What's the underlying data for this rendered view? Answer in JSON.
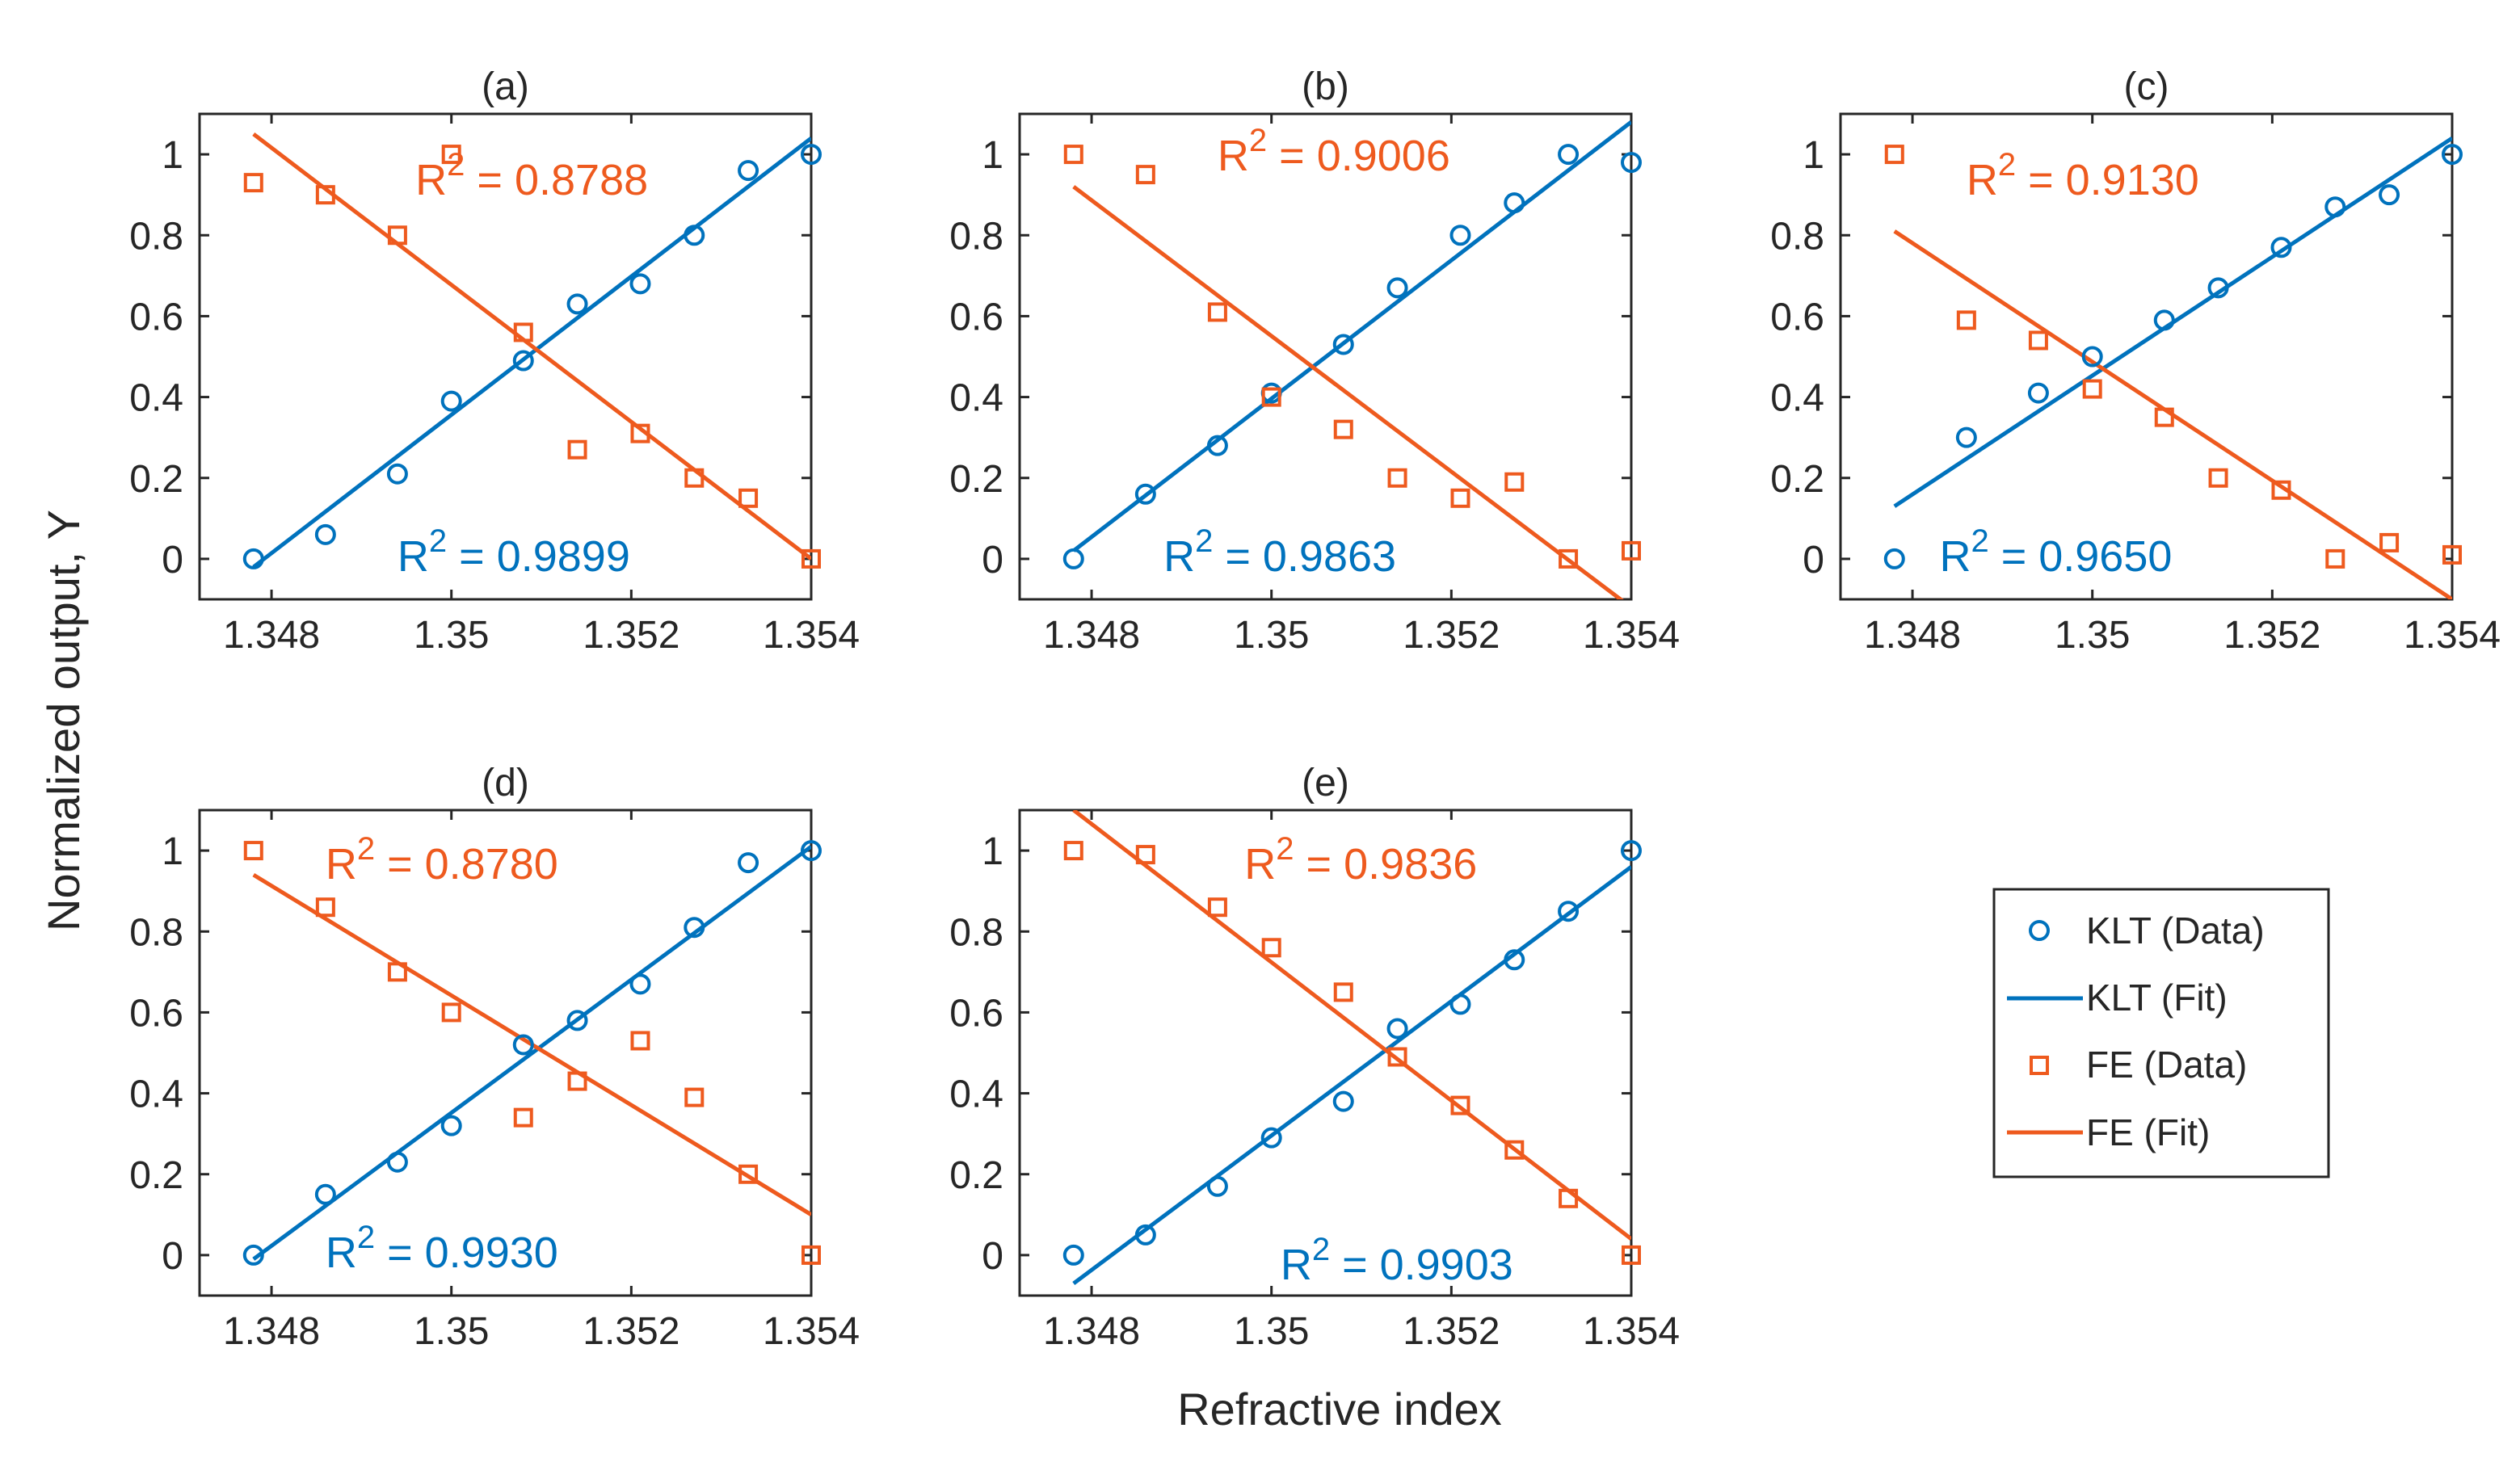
{
  "figure": {
    "ylabel": "Normalized output, Y",
    "xlabel": "Refractive index"
  },
  "colors": {
    "klt": "#0072BD",
    "fe": "#EE5A1E",
    "axis": "#262626",
    "background": "#ffffff"
  },
  "legend": {
    "items": [
      {
        "label": "KLT (Data)",
        "series": "klt",
        "kind": "marker-circle"
      },
      {
        "label": "KLT (Fit)",
        "series": "klt",
        "kind": "line"
      },
      {
        "label": "FE (Data)",
        "series": "fe",
        "kind": "marker-square"
      },
      {
        "label": "FE (Fit)",
        "series": "fe",
        "kind": "line"
      }
    ]
  },
  "axis_shared": {
    "xlim": [
      1.3472,
      1.354
    ],
    "ylim": [
      -0.1,
      1.1
    ],
    "xticks": [
      1.348,
      1.35,
      1.352,
      1.354
    ],
    "xtick_labels": [
      "1.348",
      "1.35",
      "1.352",
      "1.354"
    ],
    "yticks": [
      0,
      0.2,
      0.4,
      0.6,
      0.8,
      1
    ],
    "ytick_labels": [
      "0",
      "0.2",
      "0.4",
      "0.6",
      "0.8",
      "1"
    ]
  },
  "chart_data": [
    {
      "type": "scatter",
      "title": "(a)",
      "x": [
        1.3478,
        1.3486,
        1.3494,
        1.35,
        1.3508,
        1.3514,
        1.3521,
        1.3527,
        1.3533,
        1.354
      ],
      "series": [
        {
          "name": "KLT (Data)",
          "key": "klt",
          "values": [
            0.0,
            0.06,
            0.21,
            0.39,
            0.49,
            0.63,
            0.68,
            0.8,
            0.96,
            1.0
          ]
        },
        {
          "name": "FE (Data)",
          "key": "fe",
          "values": [
            0.93,
            0.9,
            0.8,
            1.0,
            0.56,
            0.27,
            0.31,
            0.2,
            0.15,
            0.0
          ]
        }
      ],
      "fits": [
        {
          "name": "KLT (Fit)",
          "key": "klt",
          "x": [
            1.3478,
            1.354
          ],
          "y": [
            -0.02,
            1.04
          ]
        },
        {
          "name": "FE (Fit)",
          "key": "fe",
          "x": [
            1.3478,
            1.354
          ],
          "y": [
            1.05,
            0.0
          ]
        }
      ],
      "annotations": [
        {
          "key": "fe",
          "prefix": "R",
          "sup": "2",
          "text": " = 0.8788",
          "x": 1.3496,
          "y": 0.9
        },
        {
          "key": "klt",
          "prefix": "R",
          "sup": "2",
          "text": " = 0.9899",
          "x": 1.3494,
          "y": -0.03
        }
      ]
    },
    {
      "type": "scatter",
      "title": "(b)",
      "x": [
        1.3478,
        1.3486,
        1.3494,
        1.35,
        1.3508,
        1.3514,
        1.3521,
        1.3527,
        1.3533,
        1.354
      ],
      "series": [
        {
          "name": "KLT (Data)",
          "key": "klt",
          "values": [
            0.0,
            0.16,
            0.28,
            0.41,
            0.53,
            0.67,
            0.8,
            0.88,
            1.0,
            0.98
          ]
        },
        {
          "name": "FE (Data)",
          "key": "fe",
          "values": [
            1.0,
            0.95,
            0.61,
            0.4,
            0.32,
            0.2,
            0.15,
            0.19,
            0.0,
            0.02
          ]
        }
      ],
      "fits": [
        {
          "name": "KLT (Fit)",
          "key": "klt",
          "x": [
            1.3478,
            1.354
          ],
          "y": [
            0.02,
            1.08
          ]
        },
        {
          "name": "FE (Fit)",
          "key": "fe",
          "x": [
            1.3478,
            1.354
          ],
          "y": [
            0.92,
            -0.12
          ]
        }
      ],
      "annotations": [
        {
          "key": "fe",
          "prefix": "R",
          "sup": "2",
          "text": " = 0.9006",
          "x": 1.3494,
          "y": 0.96
        },
        {
          "key": "klt",
          "prefix": "R",
          "sup": "2",
          "text": " = 0.9863",
          "x": 1.3488,
          "y": -0.03
        }
      ]
    },
    {
      "type": "scatter",
      "title": "(c)",
      "x": [
        1.3478,
        1.3486,
        1.3494,
        1.35,
        1.3508,
        1.3514,
        1.3521,
        1.3527,
        1.3533,
        1.354
      ],
      "series": [
        {
          "name": "KLT (Data)",
          "key": "klt",
          "values": [
            0.0,
            0.3,
            0.41,
            0.5,
            0.59,
            0.67,
            0.77,
            0.87,
            0.9,
            1.0
          ]
        },
        {
          "name": "FE (Data)",
          "key": "fe",
          "values": [
            1.0,
            0.59,
            0.54,
            0.42,
            0.35,
            0.2,
            0.17,
            0.0,
            0.04,
            0.01
          ]
        }
      ],
      "fits": [
        {
          "name": "KLT (Fit)",
          "key": "klt",
          "x": [
            1.3478,
            1.354
          ],
          "y": [
            0.13,
            1.04
          ]
        },
        {
          "name": "FE (Fit)",
          "key": "fe",
          "x": [
            1.3478,
            1.354
          ],
          "y": [
            0.81,
            -0.1
          ]
        }
      ],
      "annotations": [
        {
          "key": "fe",
          "prefix": "R",
          "sup": "2",
          "text": " = 0.9130",
          "x": 1.3486,
          "y": 0.9
        },
        {
          "key": "klt",
          "prefix": "R",
          "sup": "2",
          "text": " = 0.9650",
          "x": 1.3483,
          "y": -0.03
        }
      ]
    },
    {
      "type": "scatter",
      "title": "(d)",
      "x": [
        1.3478,
        1.3486,
        1.3494,
        1.35,
        1.3508,
        1.3514,
        1.3521,
        1.3527,
        1.3533,
        1.354
      ],
      "series": [
        {
          "name": "KLT (Data)",
          "key": "klt",
          "values": [
            0.0,
            0.15,
            0.23,
            0.32,
            0.52,
            0.58,
            0.67,
            0.81,
            0.97,
            1.0
          ]
        },
        {
          "name": "FE (Data)",
          "key": "fe",
          "values": [
            1.0,
            0.86,
            0.7,
            0.6,
            0.34,
            0.43,
            0.53,
            0.39,
            0.2,
            0.0
          ]
        }
      ],
      "fits": [
        {
          "name": "KLT (Fit)",
          "key": "klt",
          "x": [
            1.3478,
            1.354
          ],
          "y": [
            -0.01,
            1.01
          ]
        },
        {
          "name": "FE (Fit)",
          "key": "fe",
          "x": [
            1.3478,
            1.354
          ],
          "y": [
            0.94,
            0.1
          ]
        }
      ],
      "annotations": [
        {
          "key": "fe",
          "prefix": "R",
          "sup": "2",
          "text": " = 0.8780",
          "x": 1.3486,
          "y": 0.93
        },
        {
          "key": "klt",
          "prefix": "R",
          "sup": "2",
          "text": " = 0.9930",
          "x": 1.3486,
          "y": -0.03
        }
      ]
    },
    {
      "type": "scatter",
      "title": "(e)",
      "x": [
        1.3478,
        1.3486,
        1.3494,
        1.35,
        1.3508,
        1.3514,
        1.3521,
        1.3527,
        1.3533,
        1.354
      ],
      "series": [
        {
          "name": "KLT (Data)",
          "key": "klt",
          "values": [
            0.0,
            0.05,
            0.17,
            0.29,
            0.38,
            0.56,
            0.62,
            0.73,
            0.85,
            1.0
          ]
        },
        {
          "name": "FE (Data)",
          "key": "fe",
          "values": [
            1.0,
            0.99,
            0.86,
            0.76,
            0.65,
            0.49,
            0.37,
            0.26,
            0.14,
            0.0
          ]
        }
      ],
      "fits": [
        {
          "name": "KLT (Fit)",
          "key": "klt",
          "x": [
            1.3478,
            1.354
          ],
          "y": [
            -0.07,
            0.96
          ]
        },
        {
          "name": "FE (Fit)",
          "key": "fe",
          "x": [
            1.3478,
            1.354
          ],
          "y": [
            1.1,
            0.04
          ]
        }
      ],
      "annotations": [
        {
          "key": "fe",
          "prefix": "R",
          "sup": "2",
          "text": " = 0.9836",
          "x": 1.3497,
          "y": 0.93
        },
        {
          "key": "klt",
          "prefix": "R",
          "sup": "2",
          "text": " = 0.9903",
          "x": 1.3501,
          "y": -0.06
        }
      ]
    }
  ]
}
